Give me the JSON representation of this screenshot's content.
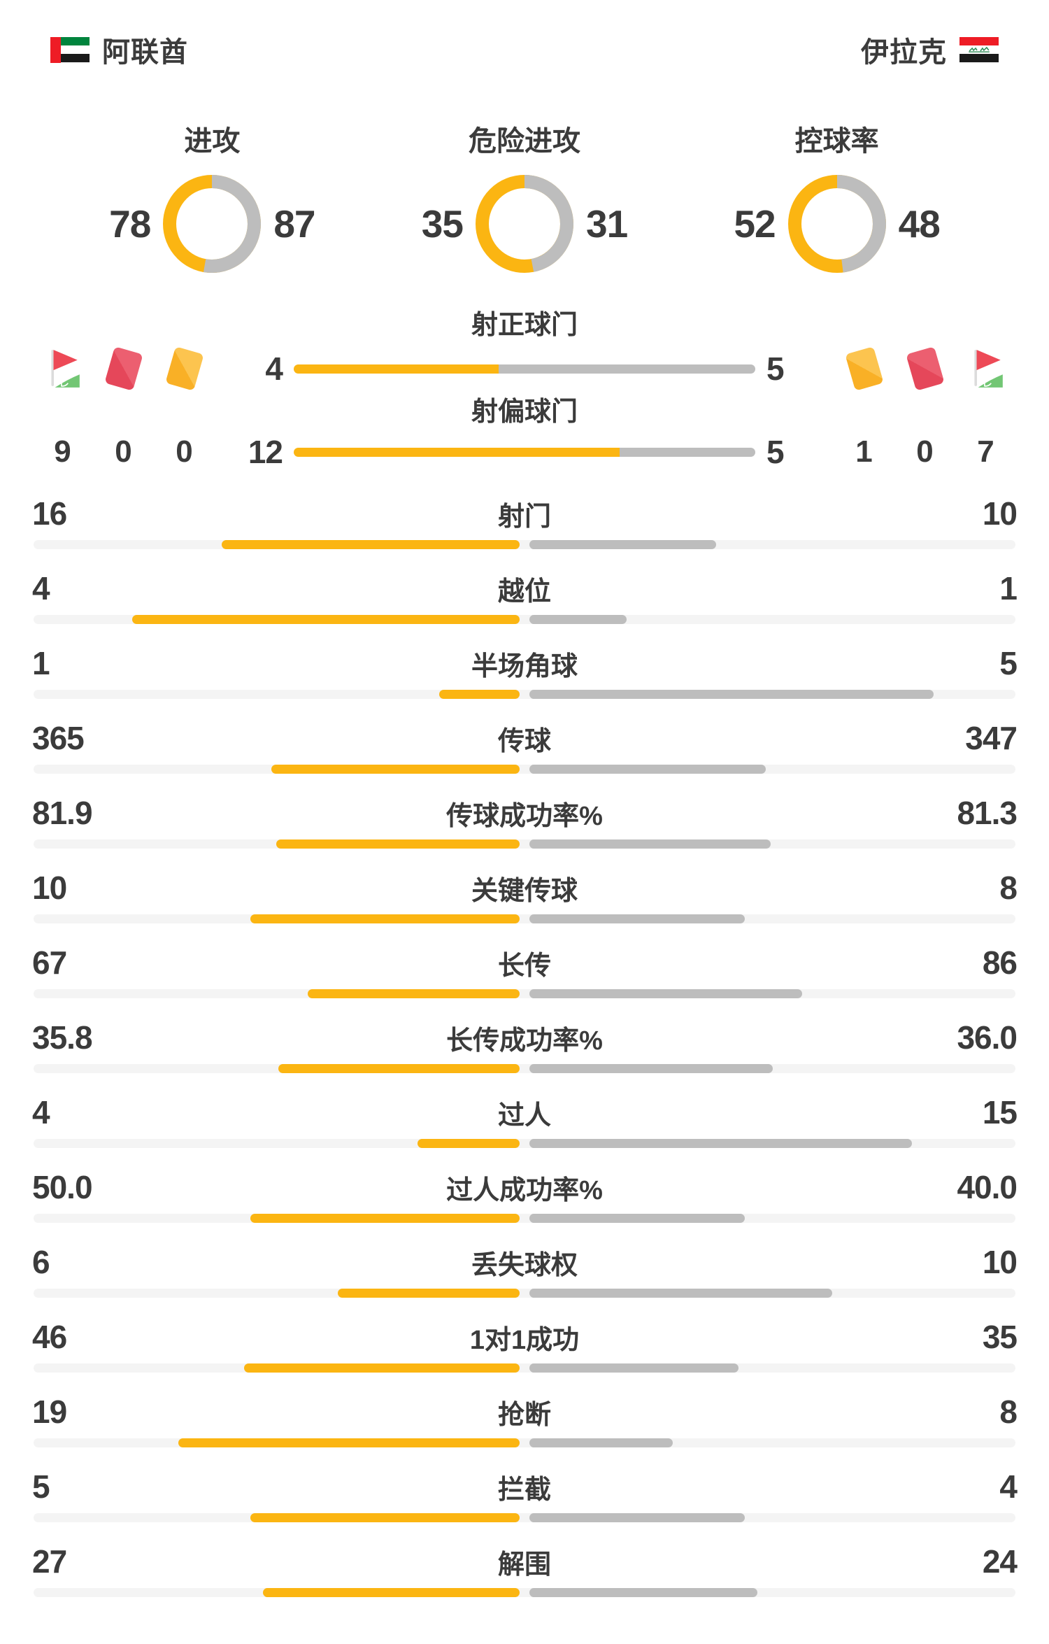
{
  "header": {
    "home_team": "阿联酋",
    "away_team": "伊拉克"
  },
  "colors": {
    "home": "#FBB512",
    "away": "#BDBDBD",
    "track": "#F4F4F4",
    "text": "#3B3B3B",
    "card_red": "#E5475A",
    "card_yellow": "#F9B026",
    "corner_flag_red": "#ED4956",
    "corner_flag_green": "#72C674"
  },
  "chart_data": {
    "type": "comparison-stats",
    "teams": [
      "阿联酋",
      "伊拉克"
    ],
    "donuts": [
      {
        "label": "进攻",
        "home": 78,
        "away": 87
      },
      {
        "label": "危险进攻",
        "home": 35,
        "away": 31
      },
      {
        "label": "控球率",
        "home": 52,
        "away": 48
      }
    ],
    "discipline": {
      "home": {
        "corners": 9,
        "red_cards": 0,
        "yellow_cards": 0
      },
      "away": {
        "yellow_cards": 1,
        "red_cards": 0,
        "corners": 7
      }
    },
    "header_bars": [
      {
        "label": "射正球门",
        "home": 4,
        "away": 5
      },
      {
        "label": "射偏球门",
        "home": 12,
        "away": 5
      }
    ],
    "stats": [
      {
        "label": "射门",
        "home": "16",
        "away": "10"
      },
      {
        "label": "越位",
        "home": "4",
        "away": "1"
      },
      {
        "label": "半场角球",
        "home": "1",
        "away": "5"
      },
      {
        "label": "传球",
        "home": "365",
        "away": "347"
      },
      {
        "label": "传球成功率%",
        "home": "81.9",
        "away": "81.3"
      },
      {
        "label": "关键传球",
        "home": "10",
        "away": "8"
      },
      {
        "label": "长传",
        "home": "67",
        "away": "86"
      },
      {
        "label": "长传成功率%",
        "home": "35.8",
        "away": "36.0"
      },
      {
        "label": "过人",
        "home": "4",
        "away": "15"
      },
      {
        "label": "过人成功率%",
        "home": "50.0",
        "away": "40.0"
      },
      {
        "label": "丢失球权",
        "home": "6",
        "away": "10"
      },
      {
        "label": "1对1成功",
        "home": "46",
        "away": "35"
      },
      {
        "label": "抢断",
        "home": "19",
        "away": "8"
      },
      {
        "label": "拦截",
        "home": "5",
        "away": "4"
      },
      {
        "label": "解围",
        "home": "27",
        "away": "24"
      }
    ]
  }
}
